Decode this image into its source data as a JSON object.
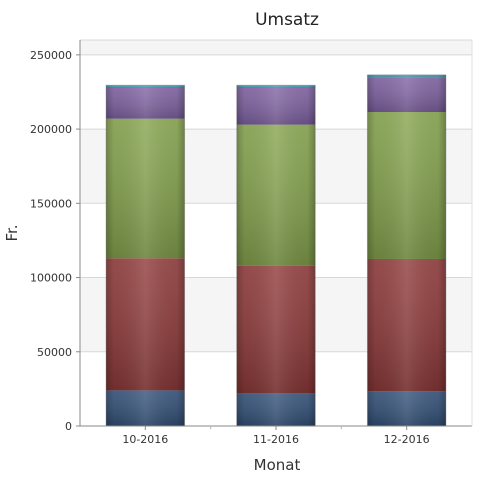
{
  "chart_data": {
    "type": "bar",
    "stacked": true,
    "title": "Umsatz",
    "xlabel": "Monat",
    "ylabel": "Fr.",
    "ylim": [
      0,
      260000
    ],
    "yticks": [
      0,
      50000,
      100000,
      150000,
      200000,
      250000
    ],
    "ytick_labels": [
      "0",
      "50000",
      "100000",
      "150000",
      "200000",
      "250000"
    ],
    "categories": [
      "10-2016",
      "11-2016",
      "12-2016"
    ],
    "grid": true,
    "legend": "none",
    "series": [
      {
        "color": "#34527a",
        "values": [
          24000,
          22000,
          23500
        ]
      },
      {
        "color": "#8f3a3a",
        "values": [
          89000,
          86000,
          89000
        ]
      },
      {
        "color": "#86a44e",
        "values": [
          94000,
          95000,
          99000
        ]
      },
      {
        "color": "#8063a3",
        "values": [
          21000,
          25000,
          23500
        ]
      },
      {
        "color": "#4aa8c2",
        "values": [
          1500,
          1500,
          1500
        ]
      }
    ]
  }
}
